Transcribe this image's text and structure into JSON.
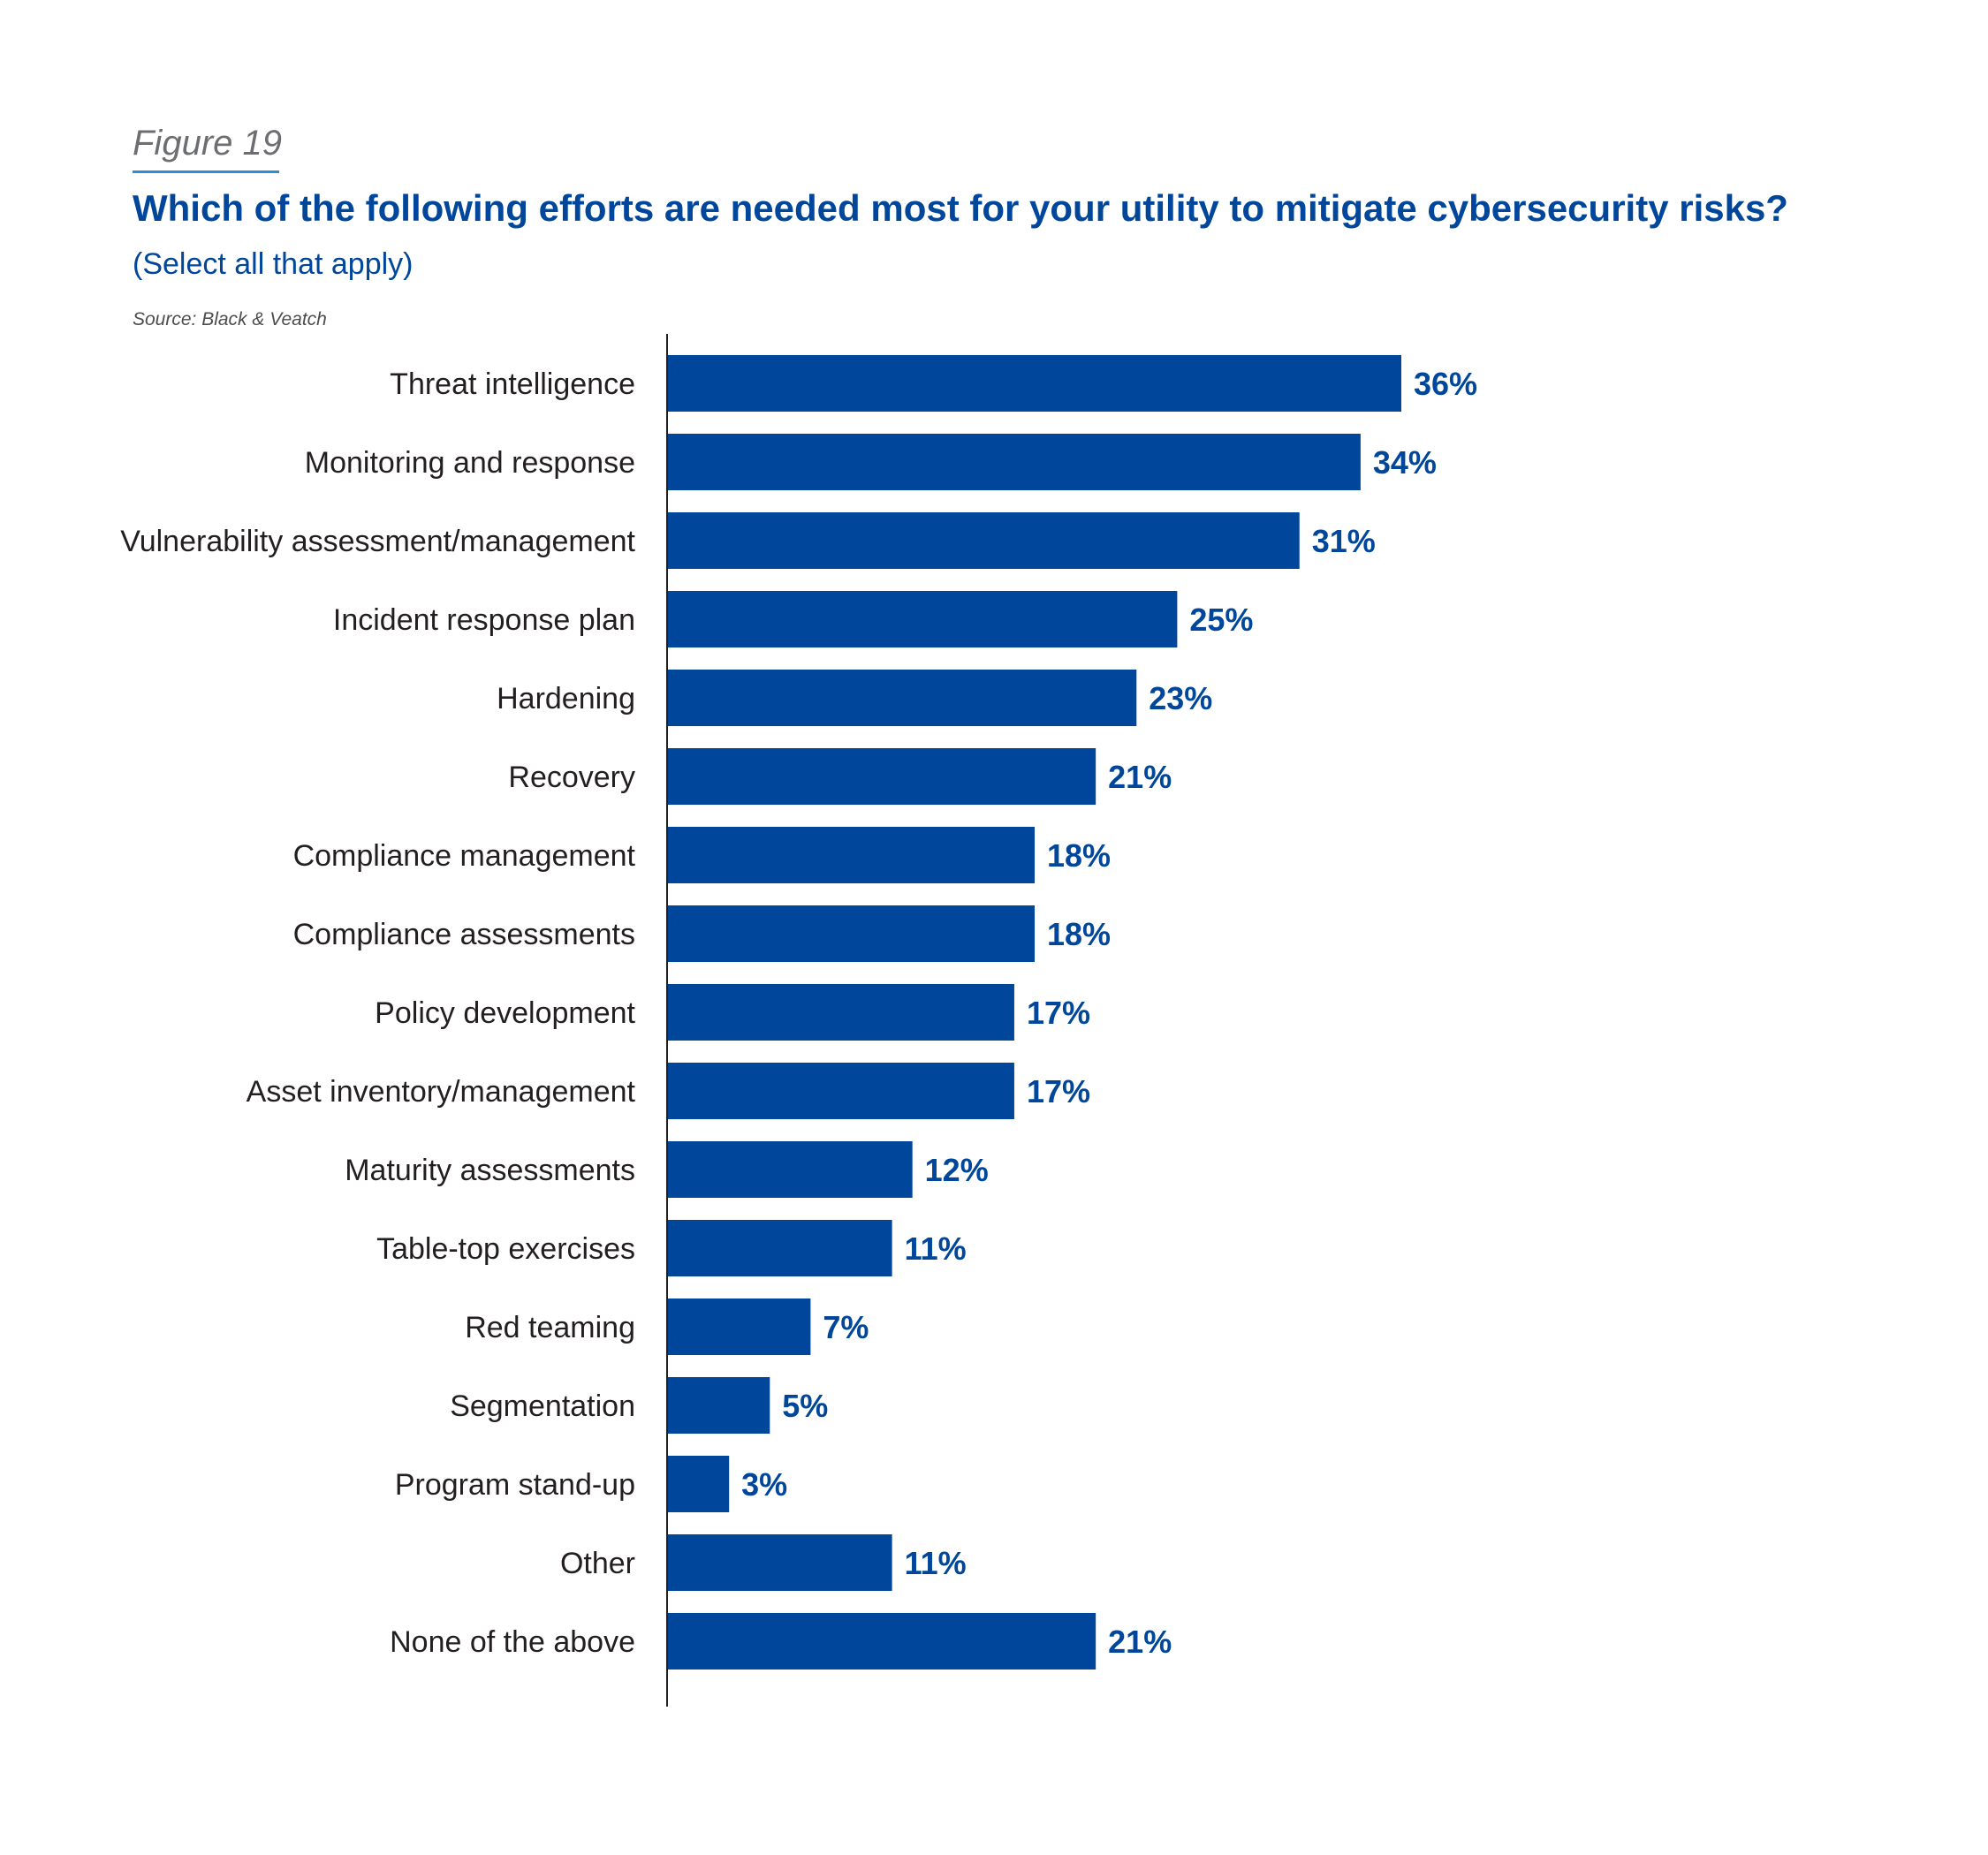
{
  "header": {
    "figure_label": "Figure 19",
    "title": "Which of the following efforts are needed most for your utility to mitigate cybersecurity risks?",
    "subtitle": "(Select all that apply)",
    "source": "Source: Black & Veatch"
  },
  "colors": {
    "bar": "#00479b",
    "value_label": "#00479b",
    "axis": "#231f20"
  },
  "chart_data": {
    "type": "bar",
    "orientation": "horizontal",
    "title": "Which of the following efforts are needed most for your utility to mitigate cybersecurity risks?",
    "subtitle": "(Select all that apply)",
    "xlabel": "",
    "ylabel": "",
    "xlim": [
      0,
      36
    ],
    "grid": false,
    "legend": "none",
    "categories": [
      "Threat intelligence",
      "Monitoring and response",
      "Vulnerability assessment/management",
      "Incident response plan",
      "Hardening",
      "Recovery",
      "Compliance management",
      "Compliance assessments",
      "Policy development",
      "Asset inventory/management",
      "Maturity assessments",
      "Table-top exercises",
      "Red teaming",
      "Segmentation",
      "Program stand-up",
      "Other",
      "None of the above"
    ],
    "values": [
      36,
      34,
      31,
      25,
      23,
      21,
      18,
      18,
      17,
      17,
      12,
      11,
      7,
      5,
      3,
      11,
      21
    ],
    "value_labels": [
      "36%",
      "34%",
      "31%",
      "25%",
      "23%",
      "21%",
      "18%",
      "18%",
      "17%",
      "17%",
      "12%",
      "11%",
      "7%",
      "5%",
      "3%",
      "11%",
      "21%"
    ],
    "unit": "%"
  }
}
